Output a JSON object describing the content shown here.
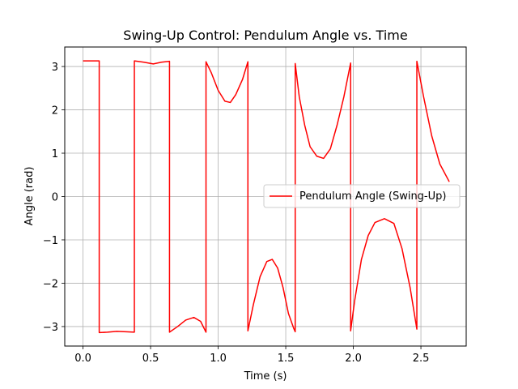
{
  "chart_data": {
    "type": "line",
    "title": "Swing-Up Control: Pendulum Angle vs. Time",
    "xlabel": "Time (s)",
    "ylabel": "Angle (rad)",
    "xlim": [
      -0.135,
      2.835
    ],
    "ylim": [
      -3.45,
      3.45
    ],
    "xticks": [
      0.0,
      0.5,
      1.0,
      1.5,
      2.0,
      2.5
    ],
    "xtick_labels": [
      "0.0",
      "0.5",
      "1.0",
      "1.5",
      "2.0",
      "2.5"
    ],
    "yticks": [
      -3,
      -2,
      -1,
      0,
      1,
      2,
      3
    ],
    "ytick_labels": [
      "−3",
      "−2",
      "−1",
      "0",
      "1",
      "2",
      "3"
    ],
    "grid": true,
    "legend_position": "center-right",
    "series": [
      {
        "name": "Pendulum Angle (Swing-Up)",
        "color": "#ff0000",
        "x": [
          0.0,
          0.06,
          0.12,
          0.12,
          0.18,
          0.25,
          0.32,
          0.38,
          0.38,
          0.45,
          0.52,
          0.58,
          0.64,
          0.64,
          0.7,
          0.76,
          0.82,
          0.87,
          0.91,
          0.91,
          0.95,
          1.0,
          1.05,
          1.09,
          1.13,
          1.18,
          1.22,
          1.22,
          1.26,
          1.31,
          1.36,
          1.4,
          1.44,
          1.48,
          1.52,
          1.56,
          1.57,
          1.57,
          1.6,
          1.64,
          1.68,
          1.73,
          1.78,
          1.83,
          1.88,
          1.93,
          1.98,
          1.98,
          2.01,
          2.06,
          2.11,
          2.16,
          2.23,
          2.3,
          2.36,
          2.42,
          2.47,
          2.47,
          2.52,
          2.58,
          2.64,
          2.71
        ],
        "y": [
          3.13,
          3.13,
          3.13,
          -3.14,
          -3.13,
          -3.11,
          -3.12,
          -3.13,
          3.13,
          3.1,
          3.06,
          3.1,
          3.12,
          -3.13,
          -3.0,
          -2.85,
          -2.79,
          -2.88,
          -3.13,
          3.11,
          2.85,
          2.45,
          2.2,
          2.17,
          2.35,
          2.7,
          3.11,
          -3.1,
          -2.5,
          -1.85,
          -1.5,
          -1.45,
          -1.65,
          -2.1,
          -2.7,
          -3.05,
          -3.12,
          3.07,
          2.3,
          1.65,
          1.15,
          0.93,
          0.88,
          1.1,
          1.65,
          2.3,
          3.08,
          -3.1,
          -2.4,
          -1.45,
          -0.9,
          -0.6,
          -0.51,
          -0.62,
          -1.2,
          -2.1,
          -3.06,
          3.12,
          2.3,
          1.4,
          0.75,
          0.34
        ]
      }
    ]
  }
}
